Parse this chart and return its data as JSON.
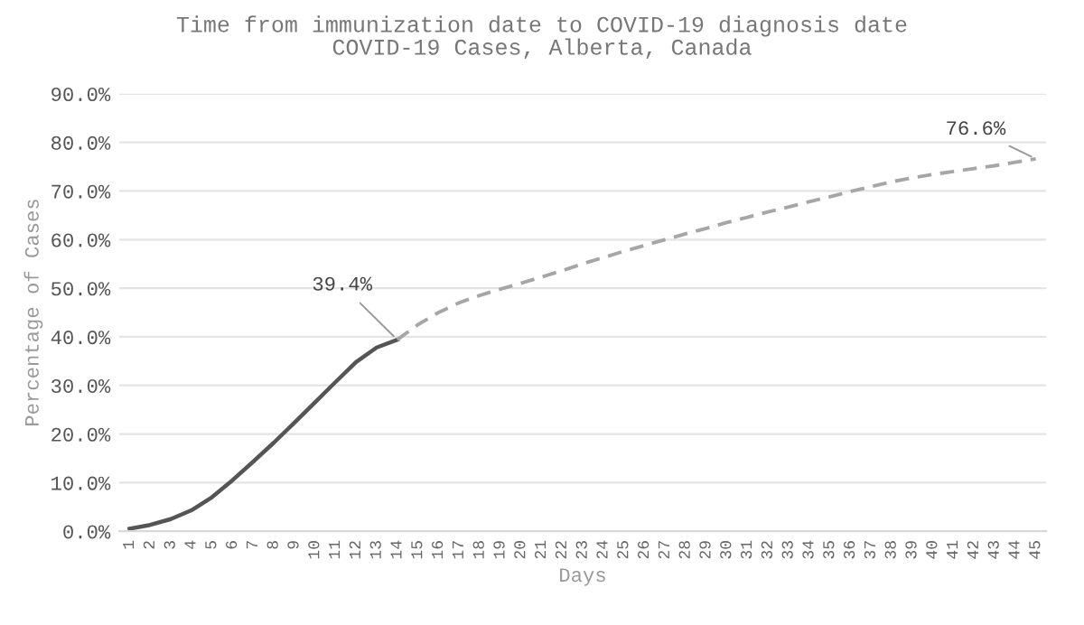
{
  "chart_data": {
    "type": "line",
    "title": "Time from immunization date to COVID-19 diagnosis date\nCOVID-19 Cases, Alberta, Canada",
    "xlabel": "Days",
    "ylabel": "Percentage of Cases",
    "categories": [
      "1",
      "2",
      "3",
      "4",
      "5",
      "6",
      "7",
      "8",
      "9",
      "10",
      "11",
      "12",
      "13",
      "14",
      "15",
      "16",
      "17",
      "18",
      "19",
      "20",
      "21",
      "22",
      "23",
      "24",
      "25",
      "26",
      "27",
      "28",
      "29",
      "30",
      "31",
      "32",
      "33",
      "34",
      "35",
      "36",
      "37",
      "38",
      "39",
      "40",
      "41",
      "42",
      "43",
      "44",
      "45"
    ],
    "series": [
      {
        "color": "#555555",
        "line_style": "solid",
        "values": [
          0.5,
          1.3,
          2.5,
          4.3,
          7,
          10.5,
          14.3,
          18.2,
          22.3,
          26.5,
          30.7,
          34.8,
          37.8,
          39.4,
          null,
          null,
          null,
          null,
          null,
          null,
          null,
          null,
          null,
          null,
          null,
          null,
          null,
          null,
          null,
          null,
          null,
          null,
          null,
          null,
          null,
          null,
          null,
          null,
          null,
          null,
          null,
          null,
          null,
          null,
          null
        ]
      },
      {
        "color": "#a6a6a6",
        "line_style": "dashed",
        "values": [
          null,
          null,
          null,
          null,
          null,
          null,
          null,
          null,
          null,
          null,
          null,
          null,
          null,
          39.4,
          42.5,
          45,
          47,
          48.5,
          49.8,
          51,
          52.3,
          53.6,
          55,
          56.3,
          57.6,
          58.8,
          60,
          61.2,
          62.3,
          63.5,
          64.6,
          65.7,
          66.7,
          67.8,
          68.8,
          69.9,
          70.9,
          71.9,
          72.7,
          73.4,
          74,
          74.6,
          75.2,
          75.9,
          76.6
        ]
      }
    ],
    "ylim": [
      0,
      90
    ],
    "yticks": [
      {
        "value": 0,
        "label": "0.0%"
      },
      {
        "value": 10,
        "label": "10.0%"
      },
      {
        "value": 20,
        "label": "20.0%"
      },
      {
        "value": 30,
        "label": "30.0%"
      },
      {
        "value": 40,
        "label": "40.0%"
      },
      {
        "value": 50,
        "label": "50.0%"
      },
      {
        "value": 60,
        "label": "60.0%"
      },
      {
        "value": 70,
        "label": "70.0%"
      },
      {
        "value": 80,
        "label": "80.0%"
      },
      {
        "value": 90,
        "label": "90.0%"
      }
    ],
    "annotations": [
      {
        "text": "39.4%",
        "x": "14",
        "y": 39.4
      },
      {
        "text": "76.6%",
        "x": "45",
        "y": 76.6
      }
    ],
    "grid": "y",
    "legend": false,
    "marker": "none"
  }
}
